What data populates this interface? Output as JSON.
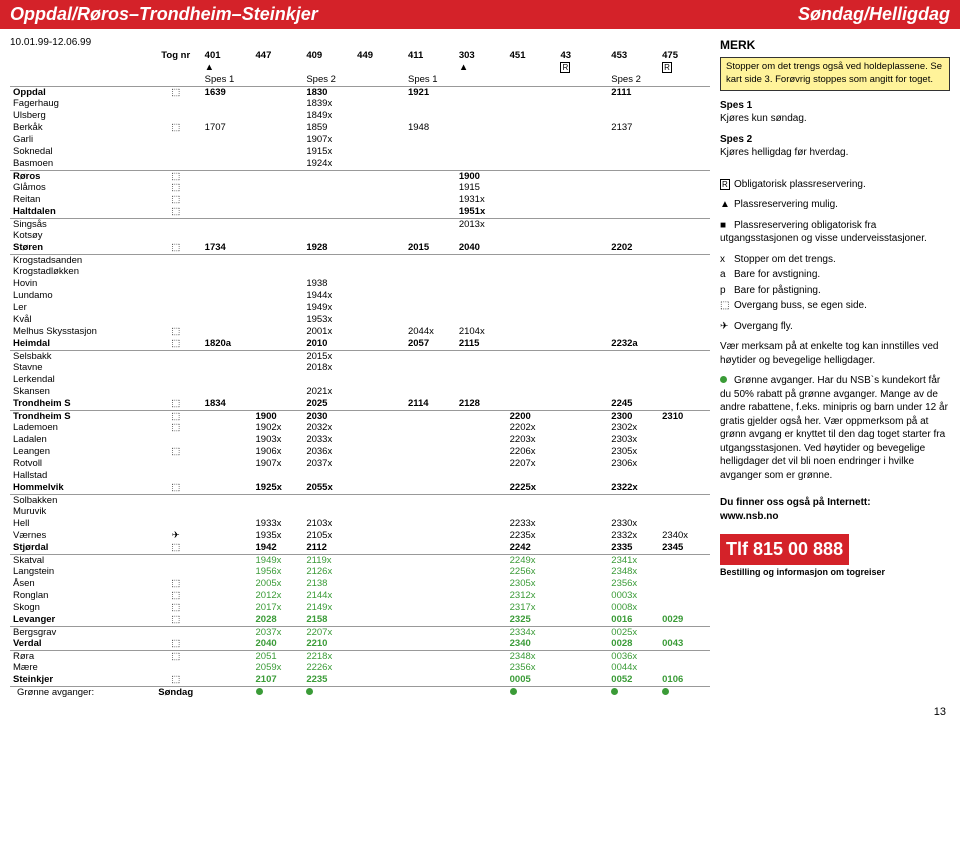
{
  "header": {
    "route": "Oppdal/Røros–Trondheim–Steinkjer",
    "day": "Søndag/Helligdag"
  },
  "dateRange": "10.01.99-12.06.99",
  "tognr_label": "Tog nr",
  "trains": [
    "401",
    "447",
    "409",
    "449",
    "411",
    "303",
    "451",
    "43",
    "453",
    "475"
  ],
  "headerSyms": [
    "▲",
    "",
    "",
    "",
    "",
    "▲",
    "",
    "R",
    "",
    "R"
  ],
  "spes": [
    "Spes 1",
    "",
    "Spes 2",
    "",
    "Spes 1",
    "",
    "",
    "",
    "Spes 2",
    ""
  ],
  "stations": [
    {
      "n": "Oppdal",
      "s": "⬚",
      "b": 1,
      "v": [
        "1639",
        "",
        "1830",
        "",
        "1921",
        "",
        "",
        "",
        "2111",
        ""
      ]
    },
    {
      "n": "Fagerhaug",
      "v": [
        "",
        "",
        "1839x",
        "",
        "",
        "",
        "",
        "",
        "",
        ""
      ]
    },
    {
      "n": "Ulsberg",
      "v": [
        "",
        "",
        "1849x",
        "",
        "",
        "",
        "",
        "",
        "",
        ""
      ]
    },
    {
      "n": "Berkåk",
      "s": "⬚",
      "v": [
        "1707",
        "",
        "1859",
        "",
        "1948",
        "",
        "",
        "",
        "2137",
        ""
      ]
    },
    {
      "n": "Garli",
      "v": [
        "",
        "",
        "1907x",
        "",
        "",
        "",
        "",
        "",
        "",
        ""
      ]
    },
    {
      "n": "Soknedal",
      "v": [
        "",
        "",
        "1915x",
        "",
        "",
        "",
        "",
        "",
        "",
        ""
      ]
    },
    {
      "n": "Basmoen",
      "sep": 1,
      "v": [
        "",
        "",
        "1924x",
        "",
        "",
        "",
        "",
        "",
        "",
        ""
      ]
    },
    {
      "n": "Røros",
      "s": "⬚",
      "b": 1,
      "v": [
        "",
        "",
        "",
        "",
        "",
        "1900",
        "",
        "",
        "",
        ""
      ]
    },
    {
      "n": "Glåmos",
      "s": "⬚",
      "v": [
        "",
        "",
        "",
        "",
        "",
        "1915",
        "",
        "",
        "",
        ""
      ]
    },
    {
      "n": "Reitan",
      "s": "⬚",
      "v": [
        "",
        "",
        "",
        "",
        "",
        "1931x",
        "",
        "",
        "",
        ""
      ]
    },
    {
      "n": "Haltdalen",
      "s": "⬚",
      "b": 1,
      "sep": 1,
      "v": [
        "",
        "",
        "",
        "",
        "",
        "1951x",
        "",
        "",
        "",
        ""
      ]
    },
    {
      "n": "Singsås",
      "v": [
        "",
        "",
        "",
        "",
        "",
        "2013x",
        "",
        "",
        "",
        ""
      ]
    },
    {
      "n": "Kotsøy",
      "v": [
        "",
        "",
        "",
        "",
        "",
        "",
        "",
        "",
        "",
        ""
      ]
    },
    {
      "n": "Støren",
      "s": "⬚",
      "b": 1,
      "sep": 1,
      "v": [
        "1734",
        "",
        "1928",
        "",
        "2015",
        "2040",
        "",
        "",
        "2202",
        ""
      ]
    },
    {
      "n": "Krogstadsanden",
      "v": [
        "",
        "",
        "",
        "",
        "",
        "",
        "",
        "",
        "",
        ""
      ]
    },
    {
      "n": "Krogstadløkken",
      "v": [
        "",
        "",
        "",
        "",
        "",
        "",
        "",
        "",
        "",
        ""
      ]
    },
    {
      "n": "Hovin",
      "v": [
        "",
        "",
        "1938",
        "",
        "",
        "",
        "",
        "",
        "",
        ""
      ]
    },
    {
      "n": "Lundamo",
      "v": [
        "",
        "",
        "1944x",
        "",
        "",
        "",
        "",
        "",
        "",
        ""
      ]
    },
    {
      "n": "Ler",
      "v": [
        "",
        "",
        "1949x",
        "",
        "",
        "",
        "",
        "",
        "",
        ""
      ]
    },
    {
      "n": "Kvål",
      "v": [
        "",
        "",
        "1953x",
        "",
        "",
        "",
        "",
        "",
        "",
        ""
      ]
    },
    {
      "n": "Melhus Skysstasjon",
      "s": "⬚",
      "v": [
        "",
        "",
        "2001x",
        "",
        "2044x",
        "2104x",
        "",
        "",
        "",
        ""
      ]
    },
    {
      "n": "Heimdal",
      "s": "⬚",
      "b": 1,
      "sep": 1,
      "v": [
        "1820a",
        "",
        "2010",
        "",
        "2057",
        "2115",
        "",
        "",
        "2232a",
        ""
      ]
    },
    {
      "n": "Selsbakk",
      "v": [
        "",
        "",
        "2015x",
        "",
        "",
        "",
        "",
        "",
        "",
        ""
      ]
    },
    {
      "n": "Stavne",
      "v": [
        "",
        "",
        "2018x",
        "",
        "",
        "",
        "",
        "",
        "",
        ""
      ]
    },
    {
      "n": "Lerkendal",
      "v": [
        "",
        "",
        "",
        "",
        "",
        "",
        "",
        "",
        "",
        ""
      ]
    },
    {
      "n": "Skansen",
      "v": [
        "",
        "",
        "2021x",
        "",
        "",
        "",
        "",
        "",
        "",
        ""
      ]
    },
    {
      "n": "Trondheim S",
      "s": "⬚",
      "b": 1,
      "sep": 1,
      "v": [
        "1834",
        "",
        "2025",
        "",
        "2114",
        "2128",
        "",
        "",
        "2245",
        ""
      ]
    },
    {
      "n": "Trondheim S",
      "s": "⬚",
      "b": 1,
      "v": [
        "",
        "1900",
        "2030",
        "",
        "",
        "",
        "2200",
        "",
        "2300",
        "2310"
      ]
    },
    {
      "n": "Lademoen",
      "s": "⬚",
      "v": [
        "",
        "1902x",
        "2032x",
        "",
        "",
        "",
        "2202x",
        "",
        "2302x",
        ""
      ]
    },
    {
      "n": "Ladalen",
      "v": [
        "",
        "1903x",
        "2033x",
        "",
        "",
        "",
        "2203x",
        "",
        "2303x",
        ""
      ]
    },
    {
      "n": "Leangen",
      "s": "⬚",
      "v": [
        "",
        "1906x",
        "2036x",
        "",
        "",
        "",
        "2206x",
        "",
        "2305x",
        ""
      ]
    },
    {
      "n": "Rotvoll",
      "v": [
        "",
        "1907x",
        "2037x",
        "",
        "",
        "",
        "2207x",
        "",
        "2306x",
        ""
      ]
    },
    {
      "n": "Hallstad",
      "v": [
        "",
        "",
        "",
        "",
        "",
        "",
        "",
        "",
        "",
        ""
      ]
    },
    {
      "n": "Hommelvik",
      "s": "⬚",
      "b": 1,
      "sep": 1,
      "v": [
        "",
        "1925x",
        "2055x",
        "",
        "",
        "",
        "2225x",
        "",
        "2322x",
        ""
      ]
    },
    {
      "n": "Solbakken",
      "v": [
        "",
        "",
        "",
        "",
        "",
        "",
        "",
        "",
        "",
        ""
      ]
    },
    {
      "n": "Muruvik",
      "v": [
        "",
        "",
        "",
        "",
        "",
        "",
        "",
        "",
        "",
        ""
      ]
    },
    {
      "n": "Hell",
      "v": [
        "",
        "1933x",
        "2103x",
        "",
        "",
        "",
        "2233x",
        "",
        "2330x",
        ""
      ]
    },
    {
      "n": "Værnes",
      "s": "✈",
      "v": [
        "",
        "1935x",
        "2105x",
        "",
        "",
        "",
        "2235x",
        "",
        "2332x",
        "2340x"
      ]
    },
    {
      "n": "Stjørdal",
      "s": "⬚",
      "b": 1,
      "sep": 1,
      "v": [
        "",
        "1942",
        "2112",
        "",
        "",
        "",
        "2242",
        "",
        "2335",
        "2345"
      ]
    },
    {
      "n": "Skatval",
      "g": 1,
      "v": [
        "",
        "1949x",
        "2119x",
        "",
        "",
        "",
        "2249x",
        "",
        "2341x",
        ""
      ]
    },
    {
      "n": "Langstein",
      "g": 1,
      "v": [
        "",
        "1956x",
        "2126x",
        "",
        "",
        "",
        "2256x",
        "",
        "2348x",
        ""
      ]
    },
    {
      "n": "Åsen",
      "s": "⬚",
      "g": 1,
      "v": [
        "",
        "2005x",
        "2138",
        "",
        "",
        "",
        "2305x",
        "",
        "2356x",
        ""
      ]
    },
    {
      "n": "Ronglan",
      "s": "⬚",
      "g": 1,
      "v": [
        "",
        "2012x",
        "2144x",
        "",
        "",
        "",
        "2312x",
        "",
        "0003x",
        ""
      ]
    },
    {
      "n": "Skogn",
      "s": "⬚",
      "g": 1,
      "v": [
        "",
        "2017x",
        "2149x",
        "",
        "",
        "",
        "2317x",
        "",
        "0008x",
        ""
      ]
    },
    {
      "n": "Levanger",
      "s": "⬚",
      "b": 1,
      "g": 1,
      "sep": 1,
      "v": [
        "",
        "2028",
        "2158",
        "",
        "",
        "",
        "2325",
        "",
        "0016",
        "0029"
      ]
    },
    {
      "n": "Bergsgrav",
      "g": 1,
      "v": [
        "",
        "2037x",
        "2207x",
        "",
        "",
        "",
        "2334x",
        "",
        "0025x",
        ""
      ]
    },
    {
      "n": "Verdal",
      "s": "⬚",
      "b": 1,
      "g": 1,
      "sep": 1,
      "v": [
        "",
        "2040",
        "2210",
        "",
        "",
        "",
        "2340",
        "",
        "0028",
        "0043"
      ]
    },
    {
      "n": "Røra",
      "s": "⬚",
      "g": 1,
      "v": [
        "",
        "2051",
        "2218x",
        "",
        "",
        "",
        "2348x",
        "",
        "0036x",
        ""
      ]
    },
    {
      "n": "Mære",
      "g": 1,
      "v": [
        "",
        "2059x",
        "2226x",
        "",
        "",
        "",
        "2356x",
        "",
        "0044x",
        ""
      ]
    },
    {
      "n": "Steinkjer",
      "s": "⬚",
      "b": 1,
      "g": 1,
      "sep": 1,
      "v": [
        "",
        "2107",
        "2235",
        "",
        "",
        "",
        "0005",
        "",
        "0052",
        "0106"
      ]
    }
  ],
  "greenRow": {
    "label": "Grønne avganger:",
    "day": "Søndag",
    "dots": [
      0,
      1,
      1,
      0,
      0,
      0,
      1,
      0,
      1,
      1
    ]
  },
  "notes": {
    "merk": "MERK",
    "box": "Stopper om det trengs også ved holdeplassene. Se kart side 3. Forøvrig stoppes som angitt for toget.",
    "spes1t": "Spes 1",
    "spes1": "Kjøres kun søndag.",
    "spes2t": "Spes 2",
    "spes2": "Kjøres helligdag før hverdag.",
    "r": "Obligatorisk plassreservering.",
    "tri": "Plassreservering mulig.",
    "sq": "Plassreservering obligatorisk fra utgangsstasjonen og visse underveisstasjoner.",
    "x": "Stopper om det trengs.",
    "a": "Bare for avstigning.",
    "p": "Bare for påstigning.",
    "bus": "Overgang buss, se egen side.",
    "fly": "Overgang fly.",
    "note1": "Vær merksam på at enkelte tog kan innstilles ved høytider og bevegelige helligdager.",
    "note2": "Grønne avganger. Har du NSB`s kundekort får du 50% rabatt på grønne avganger. Mange av de andre rabattene, f.eks. minipris og barn under 12 år gratis gjelder også her. Vær oppmerksom på at grønn avgang er knyttet til den dag toget starter fra utgangsstasjonen. Ved høytider og bevegelige helligdager det vil bli noen endringer i hvilke avganger som er grønne.",
    "internet": "Du finner oss også på Internett:",
    "url": "www.nsb.no",
    "phone": "Tlf 815 00 888",
    "phonesub": "Bestilling og informasjon om togreiser"
  },
  "pagenum": "13"
}
